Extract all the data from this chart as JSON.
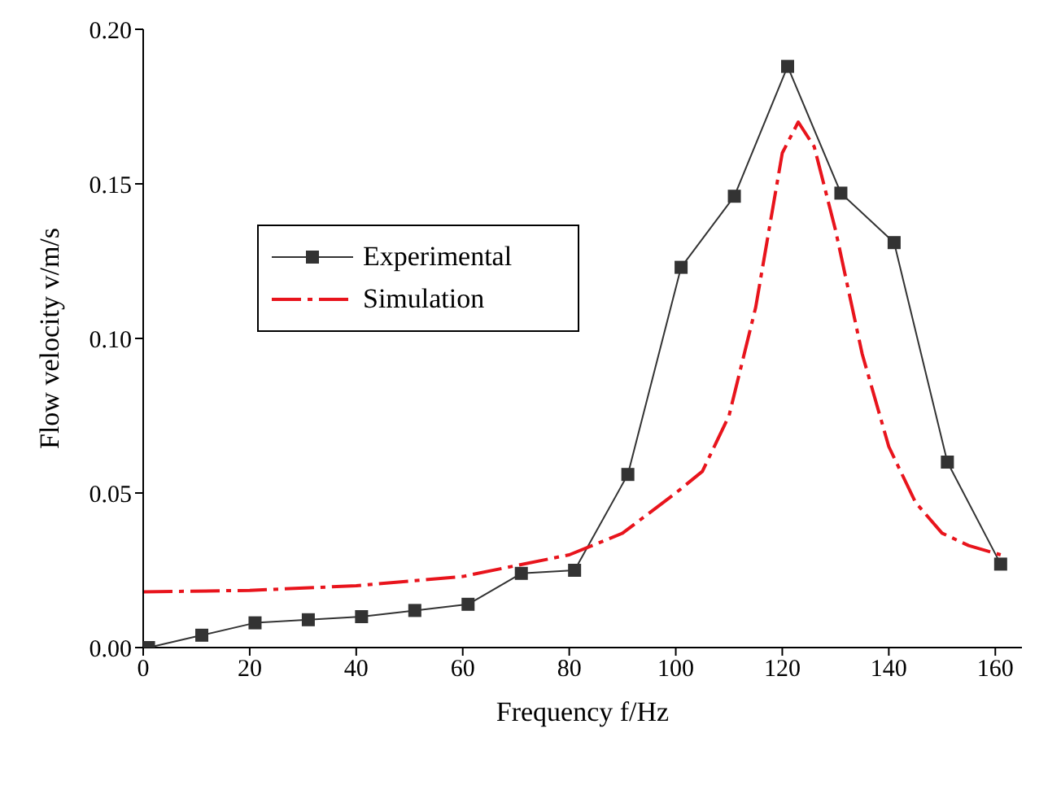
{
  "chart_data": {
    "type": "line",
    "xlabel": "Frequency f/Hz",
    "ylabel": "Flow velocity v/m/s",
    "xlim": [
      0,
      165
    ],
    "xticks": [
      0,
      20,
      40,
      60,
      80,
      100,
      120,
      140,
      160
    ],
    "ylim": [
      0,
      0.2
    ],
    "yticks": [
      {
        "value": 0,
        "label": "0.00"
      },
      {
        "value": 0.05,
        "label": "0.05"
      },
      {
        "value": 0.1,
        "label": "0.10"
      },
      {
        "value": 0.15,
        "label": "0.15"
      },
      {
        "value": 0.2,
        "label": "0.20"
      }
    ],
    "grid": false,
    "legend": "top left",
    "series": [
      {
        "name": "Experimental",
        "color": "#333333",
        "marker": "square",
        "line_style": "solid",
        "x": [
          1,
          11,
          21,
          31,
          41,
          51,
          61,
          71,
          81,
          91,
          101,
          111,
          121,
          131,
          141,
          151,
          161
        ],
        "values": [
          0,
          0.004,
          0.008,
          0.009,
          0.01,
          0.012,
          0.014,
          0.024,
          0.025,
          0.056,
          0.123,
          0.146,
          0.188,
          0.147,
          0.131,
          0.06,
          0.027
        ]
      },
      {
        "name": "Simulation",
        "color": "#e8141c",
        "marker": "none",
        "line_style": "dashed",
        "x": [
          0,
          20,
          40,
          60,
          80,
          90,
          100,
          105,
          110,
          115,
          120,
          123,
          126,
          130,
          135,
          140,
          145,
          150,
          155,
          161
        ],
        "values": [
          0.018,
          0.0185,
          0.02,
          0.023,
          0.03,
          0.037,
          0.05,
          0.057,
          0.075,
          0.11,
          0.16,
          0.17,
          0.162,
          0.135,
          0.095,
          0.065,
          0.047,
          0.037,
          0.033,
          0.03
        ]
      }
    ]
  }
}
